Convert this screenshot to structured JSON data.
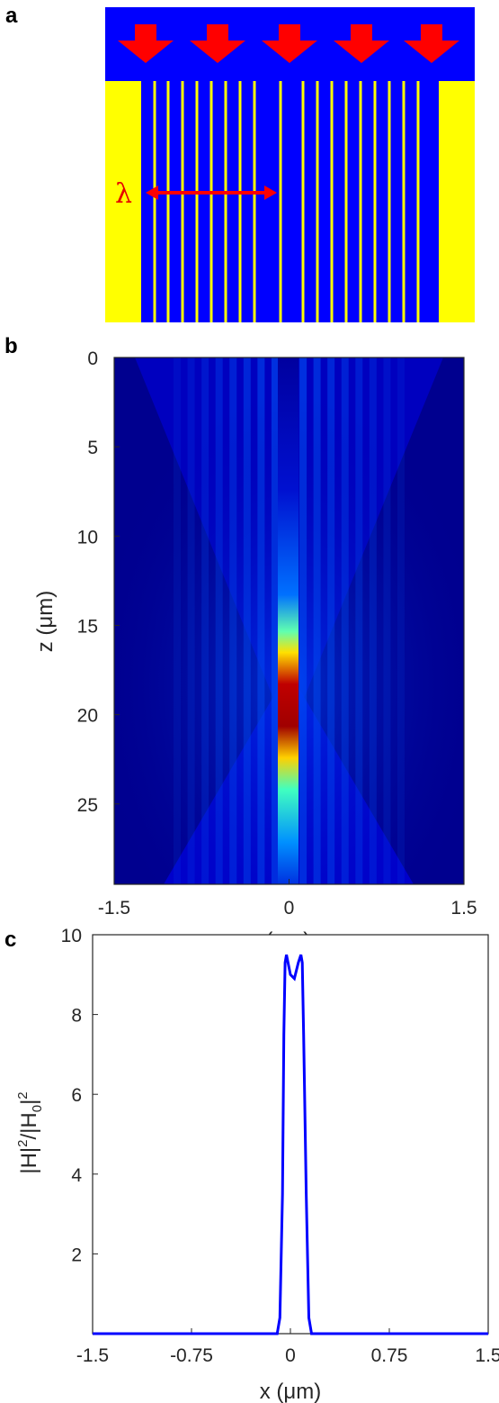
{
  "panels": {
    "a": {
      "label": "a",
      "lambda_symbol": "λ"
    },
    "b": {
      "label": "b"
    },
    "c": {
      "label": "c"
    }
  },
  "colors": {
    "substrate": "#0000ff",
    "metal": "#ffff00",
    "arrow": "#ff0000",
    "cmap_low": "#00008f",
    "cmap_high": "#800000",
    "line": "#0000ff"
  },
  "chart_data": [
    {
      "type": "diagram",
      "description_labels": [
        "λ"
      ],
      "incident_arrows": 5,
      "slit_count": 18
    },
    {
      "type": "heatmap",
      "xlabel": "x (μm)",
      "ylabel": "z (μm)",
      "xlim": [
        -1.5,
        1.5
      ],
      "ylim": [
        0,
        29.5
      ],
      "y_reversed": true,
      "xticks": [
        "-1.5",
        "0",
        "1.5"
      ],
      "xtick_values": [
        -1.5,
        0,
        1.5
      ],
      "yticks": [
        "0",
        "5",
        "10",
        "15",
        "20",
        "25"
      ],
      "ytick_values": [
        0,
        5,
        10,
        15,
        20,
        25
      ],
      "focus_x": 0,
      "focus_z": 18.7,
      "colormap": "jet"
    },
    {
      "type": "line",
      "xlabel": "x (μm)",
      "ylabel_parts": [
        "|H|",
        "2",
        "/|H",
        "0",
        "|",
        "2"
      ],
      "xlim": [
        -1.5,
        1.5
      ],
      "ylim": [
        0,
        10
      ],
      "xticks": [
        "-1.5",
        "-0.75",
        "0",
        "0.75",
        "1.5"
      ],
      "xtick_values": [
        -1.5,
        -0.75,
        0,
        0.75,
        1.5
      ],
      "yticks": [
        "2",
        "4",
        "6",
        "8",
        "10"
      ],
      "ytick_values": [
        2,
        4,
        6,
        8,
        10
      ],
      "series": [
        {
          "x": [
            -1.5,
            -0.5,
            -0.1,
            -0.08,
            -0.06,
            -0.05,
            -0.04,
            -0.03,
            0,
            0.03,
            0.06,
            0.08,
            0.09,
            0.1,
            0.12,
            0.14,
            0.16,
            0.5,
            1.5
          ],
          "values": [
            0,
            0,
            0,
            0.4,
            3.5,
            7.5,
            9.3,
            9.5,
            9.0,
            8.9,
            9.3,
            9.5,
            9.3,
            7.5,
            3.5,
            0.4,
            0,
            0,
            0
          ]
        }
      ]
    }
  ]
}
